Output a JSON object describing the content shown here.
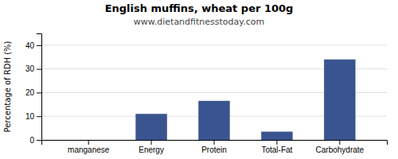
{
  "chart_data": {
    "type": "bar",
    "title": "English muffins, wheat per 100g",
    "subtitle": "www.dietandfitnesstoday.com",
    "categories": [
      "manganese",
      "Energy",
      "Protein",
      "Total-Fat",
      "Carbohydrate"
    ],
    "values": [
      0,
      11,
      16.5,
      3.5,
      34
    ],
    "color": "#3a5490",
    "ylabel": "Percentage of RDH (%)",
    "ylim": [
      0,
      45
    ],
    "yticks": [
      0,
      10,
      20,
      30,
      40
    ],
    "grid": true
  }
}
